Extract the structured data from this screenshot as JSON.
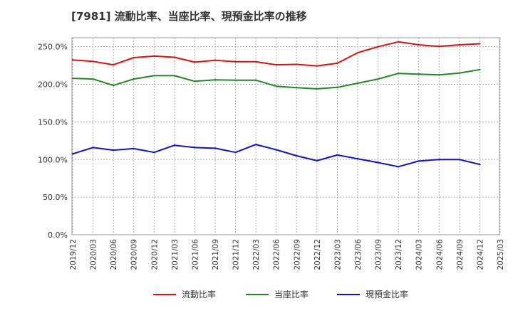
{
  "chart_data": {
    "type": "line",
    "title": "[7981]  流動比率、当座比率、現預金比率の推移",
    "xlabel": "",
    "ylabel": "",
    "ylim": [
      0,
      262
    ],
    "yticks": [
      "0.0%",
      "50.0%",
      "100.0%",
      "150.0%",
      "200.0%",
      "250.0%"
    ],
    "ytick_values": [
      0,
      50,
      100,
      150,
      200,
      250
    ],
    "categories": [
      "2019/12",
      "2020/03",
      "2020/06",
      "2020/09",
      "2020/12",
      "2021/03",
      "2021/06",
      "2021/09",
      "2021/12",
      "2022/03",
      "2022/06",
      "2022/09",
      "2022/12",
      "2023/03",
      "2023/06",
      "2023/09",
      "2023/12",
      "2024/03",
      "2024/06",
      "2024/09",
      "2024/12",
      "2025/03"
    ],
    "series": [
      {
        "name": "流動比率",
        "color": "#dd1111",
        "values": [
          232.5,
          230.5,
          226,
          235.5,
          237.5,
          236,
          229.5,
          232,
          230,
          230,
          226,
          226.5,
          224.5,
          228,
          242,
          250,
          256.5,
          252.5,
          250.5,
          252.5,
          254,
          null
        ]
      },
      {
        "name": "当座比率",
        "color": "#228822",
        "values": [
          208,
          207,
          198.5,
          207,
          211.5,
          211.5,
          204,
          206,
          205.5,
          205.5,
          197.5,
          195.5,
          194,
          196,
          201.5,
          207,
          214.5,
          213.5,
          212.5,
          215,
          219.5,
          null
        ]
      },
      {
        "name": "現預金比率",
        "color": "#1111cc",
        "values": [
          107.5,
          116,
          112.5,
          114.5,
          109.5,
          119,
          116,
          115,
          109.5,
          120,
          113,
          105,
          98.5,
          106,
          101,
          96,
          90.5,
          98,
          100,
          100,
          93.5,
          null
        ]
      }
    ]
  }
}
